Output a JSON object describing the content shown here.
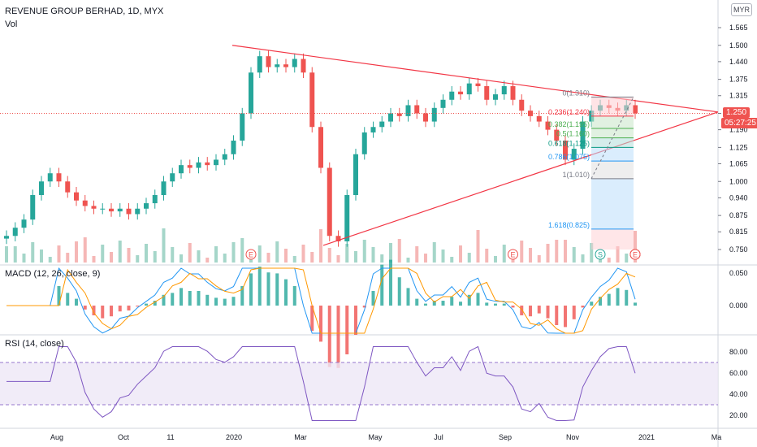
{
  "header": {
    "title": "REVENUE GROUP BERHAD, 1D, MYX",
    "volume_label": "Vol",
    "currency": "MYR"
  },
  "price_panel": {
    "last_price": "1.250",
    "countdown": "05:27:25",
    "y_ticks": [
      "1.565",
      "1.500",
      "1.440",
      "1.375",
      "1.315",
      "1.250",
      "1.190",
      "1.125",
      "1.065",
      "1.000",
      "0.940",
      "0.875",
      "0.815",
      "0.750"
    ],
    "fib_levels": [
      {
        "label": "0(1.310)",
        "price": 1.31,
        "color": "#787b86"
      },
      {
        "label": "0.236(1.240)",
        "price": 1.24,
        "color": "#f23645"
      },
      {
        "label": "0.382(1.195)",
        "price": 1.195,
        "color": "#4caf50"
      },
      {
        "label": "0.5(1.160)",
        "price": 1.16,
        "color": "#4caf50"
      },
      {
        "label": "0.618(1.125)",
        "price": 1.125,
        "color": "#089981"
      },
      {
        "label": "0.786(1.075)",
        "price": 1.075,
        "color": "#2196f3"
      },
      {
        "label": "1(1.010)",
        "price": 1.01,
        "color": "#787b86"
      },
      {
        "label": "1.618(0.825)",
        "price": 0.825,
        "color": "#2196f3"
      }
    ],
    "event_markers": [
      {
        "label": "E",
        "x_index": 28
      },
      {
        "label": "E",
        "x_index": 58
      },
      {
        "label": "S",
        "x_index": 68
      },
      {
        "label": "E",
        "x_index": 92
      },
      {
        "label": "E",
        "x_index": 124
      },
      {
        "label": "E",
        "x_index": 158
      },
      {
        "label": "E",
        "x_index": 190
      }
    ],
    "colors": {
      "up": "#26a69a",
      "down": "#ef5350",
      "trend": "#f23645"
    }
  },
  "macd": {
    "label": "MACD (12, 26, close, 9)",
    "y_ticks": [
      "0.050",
      "0.000"
    ]
  },
  "rsi": {
    "label": "RSI (14, close)",
    "y_ticks": [
      "80.00",
      "60.00",
      "40.00",
      "20.00"
    ],
    "band": [
      30,
      70
    ]
  },
  "x_axis": {
    "ticks": [
      "Aug",
      "Oct",
      "11",
      "2020",
      "Mar",
      "May",
      "Jul",
      "Sep",
      "Nov",
      "2021",
      "Ma"
    ]
  },
  "chart_data": {
    "type": "line",
    "series": [
      {
        "values": [
          0.8,
          0.83,
          0.86,
          0.95,
          1.0,
          1.03,
          1.0,
          0.96,
          0.93,
          0.91,
          0.9,
          0.9,
          0.89,
          0.9,
          0.88,
          0.9,
          0.92,
          0.95,
          1.0,
          1.03,
          1.06,
          1.05,
          1.07,
          1.06,
          1.08,
          1.1,
          1.15,
          1.25,
          1.4,
          1.46,
          1.42,
          1.43,
          1.42,
          1.45,
          1.4,
          1.2,
          1.05,
          0.8,
          0.78,
          0.95,
          1.1,
          1.18,
          1.2,
          1.22,
          1.25,
          1.24,
          1.28,
          1.25,
          1.22,
          1.27,
          1.3,
          1.33,
          1.32,
          1.36,
          1.35,
          1.3,
          1.32,
          1.35,
          1.3,
          1.26,
          1.24,
          1.22,
          1.19,
          1.15,
          1.08,
          1.12,
          1.22,
          1.26,
          1.28,
          1.27,
          1.26,
          1.28,
          1.25
        ]
      }
    ]
  }
}
